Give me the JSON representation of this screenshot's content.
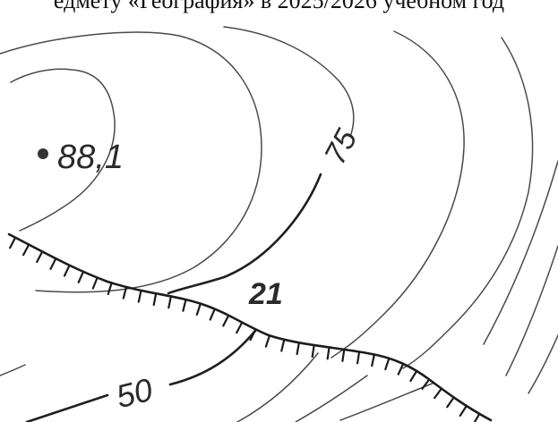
{
  "header": {
    "text": "едмету «География» в 2025/2026 учебном год"
  },
  "map": {
    "spot_height": "88,1",
    "contour_labels": {
      "upper": "75",
      "lower": "50"
    },
    "cliff_height": "21"
  },
  "colors": {
    "ink": "#1f1f1f",
    "paper": "#ffffff"
  },
  "icons": {
    "spot_height_marker": "filled-dot-icon"
  }
}
